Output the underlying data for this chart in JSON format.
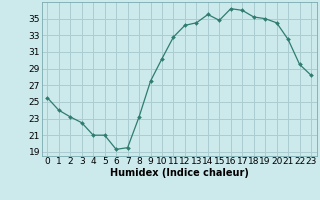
{
  "x": [
    0,
    1,
    2,
    3,
    4,
    5,
    6,
    7,
    8,
    9,
    10,
    11,
    12,
    13,
    14,
    15,
    16,
    17,
    18,
    19,
    20,
    21,
    22,
    23
  ],
  "y": [
    25.5,
    24.0,
    23.2,
    22.5,
    21.0,
    21.0,
    19.3,
    19.5,
    23.2,
    27.5,
    30.2,
    32.8,
    34.2,
    34.5,
    35.5,
    34.8,
    36.2,
    36.0,
    35.2,
    35.0,
    34.5,
    32.5,
    29.5,
    28.2
  ],
  "line_color": "#2e7d6e",
  "marker_color": "#2e7d6e",
  "bg_color": "#cce9ec",
  "grid_color": "#aacdd2",
  "xlabel": "Humidex (Indice chaleur)",
  "xlim": [
    -0.5,
    23.5
  ],
  "ylim": [
    18.5,
    37.0
  ],
  "yticks": [
    19,
    21,
    23,
    25,
    27,
    29,
    31,
    33,
    35
  ],
  "xtick_labels": [
    "0",
    "1",
    "2",
    "3",
    "4",
    "5",
    "6",
    "7",
    "8",
    "9",
    "10",
    "11",
    "12",
    "13",
    "14",
    "15",
    "16",
    "17",
    "18",
    "19",
    "20",
    "21",
    "22",
    "23"
  ],
  "font_size": 6.5,
  "xlabel_fontsize": 7.0
}
